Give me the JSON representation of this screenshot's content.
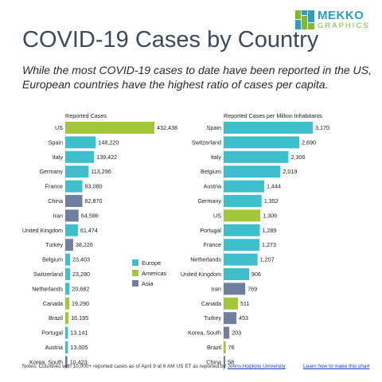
{
  "header": {
    "title": "COVID-19 Cases by Country",
    "subtitle": "While the most COVID-19 cases to date have been reported in the US, European countries have the highest ratio of cases per capita."
  },
  "logo": {
    "line1": "MEKKO",
    "line2": "GRAPHICS"
  },
  "colors": {
    "Europe": "#3fbfcc",
    "Americas": "#a3c73a",
    "Asia": "#6f7fa0"
  },
  "legend": [
    {
      "label": "Europe",
      "key": "Europe"
    },
    {
      "label": "Americas",
      "key": "Americas"
    },
    {
      "label": "Asia",
      "key": "Asia"
    }
  ],
  "chart_data": [
    {
      "type": "bar",
      "orientation": "horizontal",
      "title": "Reported Cases",
      "categories": [
        "US",
        "Spain",
        "Italy",
        "Germany",
        "France",
        "China",
        "Iran",
        "United Kingdom",
        "Turkey",
        "Belgium",
        "Switzerland",
        "Netherlands",
        "Canada",
        "Brazil",
        "Portugal",
        "Austria",
        "Korea, South"
      ],
      "values": [
        432438,
        148220,
        139422,
        113296,
        83080,
        82870,
        64586,
        61474,
        38226,
        23403,
        23280,
        20682,
        19290,
        16195,
        13141,
        13005,
        10423
      ],
      "labels": [
        "432,438",
        "148,220",
        "139,422",
        "113,296",
        "83,080",
        "82,870",
        "64,586",
        "61,474",
        "38,226",
        "23,403",
        "23,280",
        "20,682",
        "19,290",
        "16,195",
        "13,141",
        "13,005",
        "10,423"
      ],
      "regions": [
        "Americas",
        "Europe",
        "Europe",
        "Europe",
        "Europe",
        "Asia",
        "Asia",
        "Europe",
        "Asia",
        "Europe",
        "Europe",
        "Europe",
        "Americas",
        "Americas",
        "Europe",
        "Europe",
        "Asia"
      ]
    },
    {
      "type": "bar",
      "orientation": "horizontal",
      "title": "Reported Cases per Million Inhabitants",
      "categories": [
        "Spain",
        "Switzerland",
        "Italy",
        "Belgium",
        "Austria",
        "Germany",
        "US",
        "Portugal",
        "France",
        "Netherlands",
        "United Kingdom",
        "Iran",
        "Canada",
        "Turkey",
        "Korea, South",
        "Brazil",
        "China"
      ],
      "values": [
        3170,
        2690,
        2306,
        2019,
        1444,
        1352,
        1306,
        1289,
        1273,
        1207,
        906,
        769,
        511,
        453,
        203,
        76,
        58
      ],
      "labels": [
        "3,170",
        "2,690",
        "2,306",
        "2,019",
        "1,444",
        "1,352",
        "1,306",
        "1,289",
        "1,273",
        "1,207",
        "906",
        "769",
        "511",
        "453",
        "203",
        "76",
        "58"
      ],
      "regions": [
        "Europe",
        "Europe",
        "Europe",
        "Europe",
        "Europe",
        "Europe",
        "Americas",
        "Europe",
        "Europe",
        "Europe",
        "Europe",
        "Asia",
        "Americas",
        "Asia",
        "Asia",
        "Americas",
        "Asia"
      ]
    }
  ],
  "footer": {
    "note": "Notes: Countries with 10,000+ reported cases as of April 9 at 6 AM US ET as reported by ",
    "source_link": "Johns Hopkins University",
    "learn_link": "Learn how to make this chart"
  }
}
